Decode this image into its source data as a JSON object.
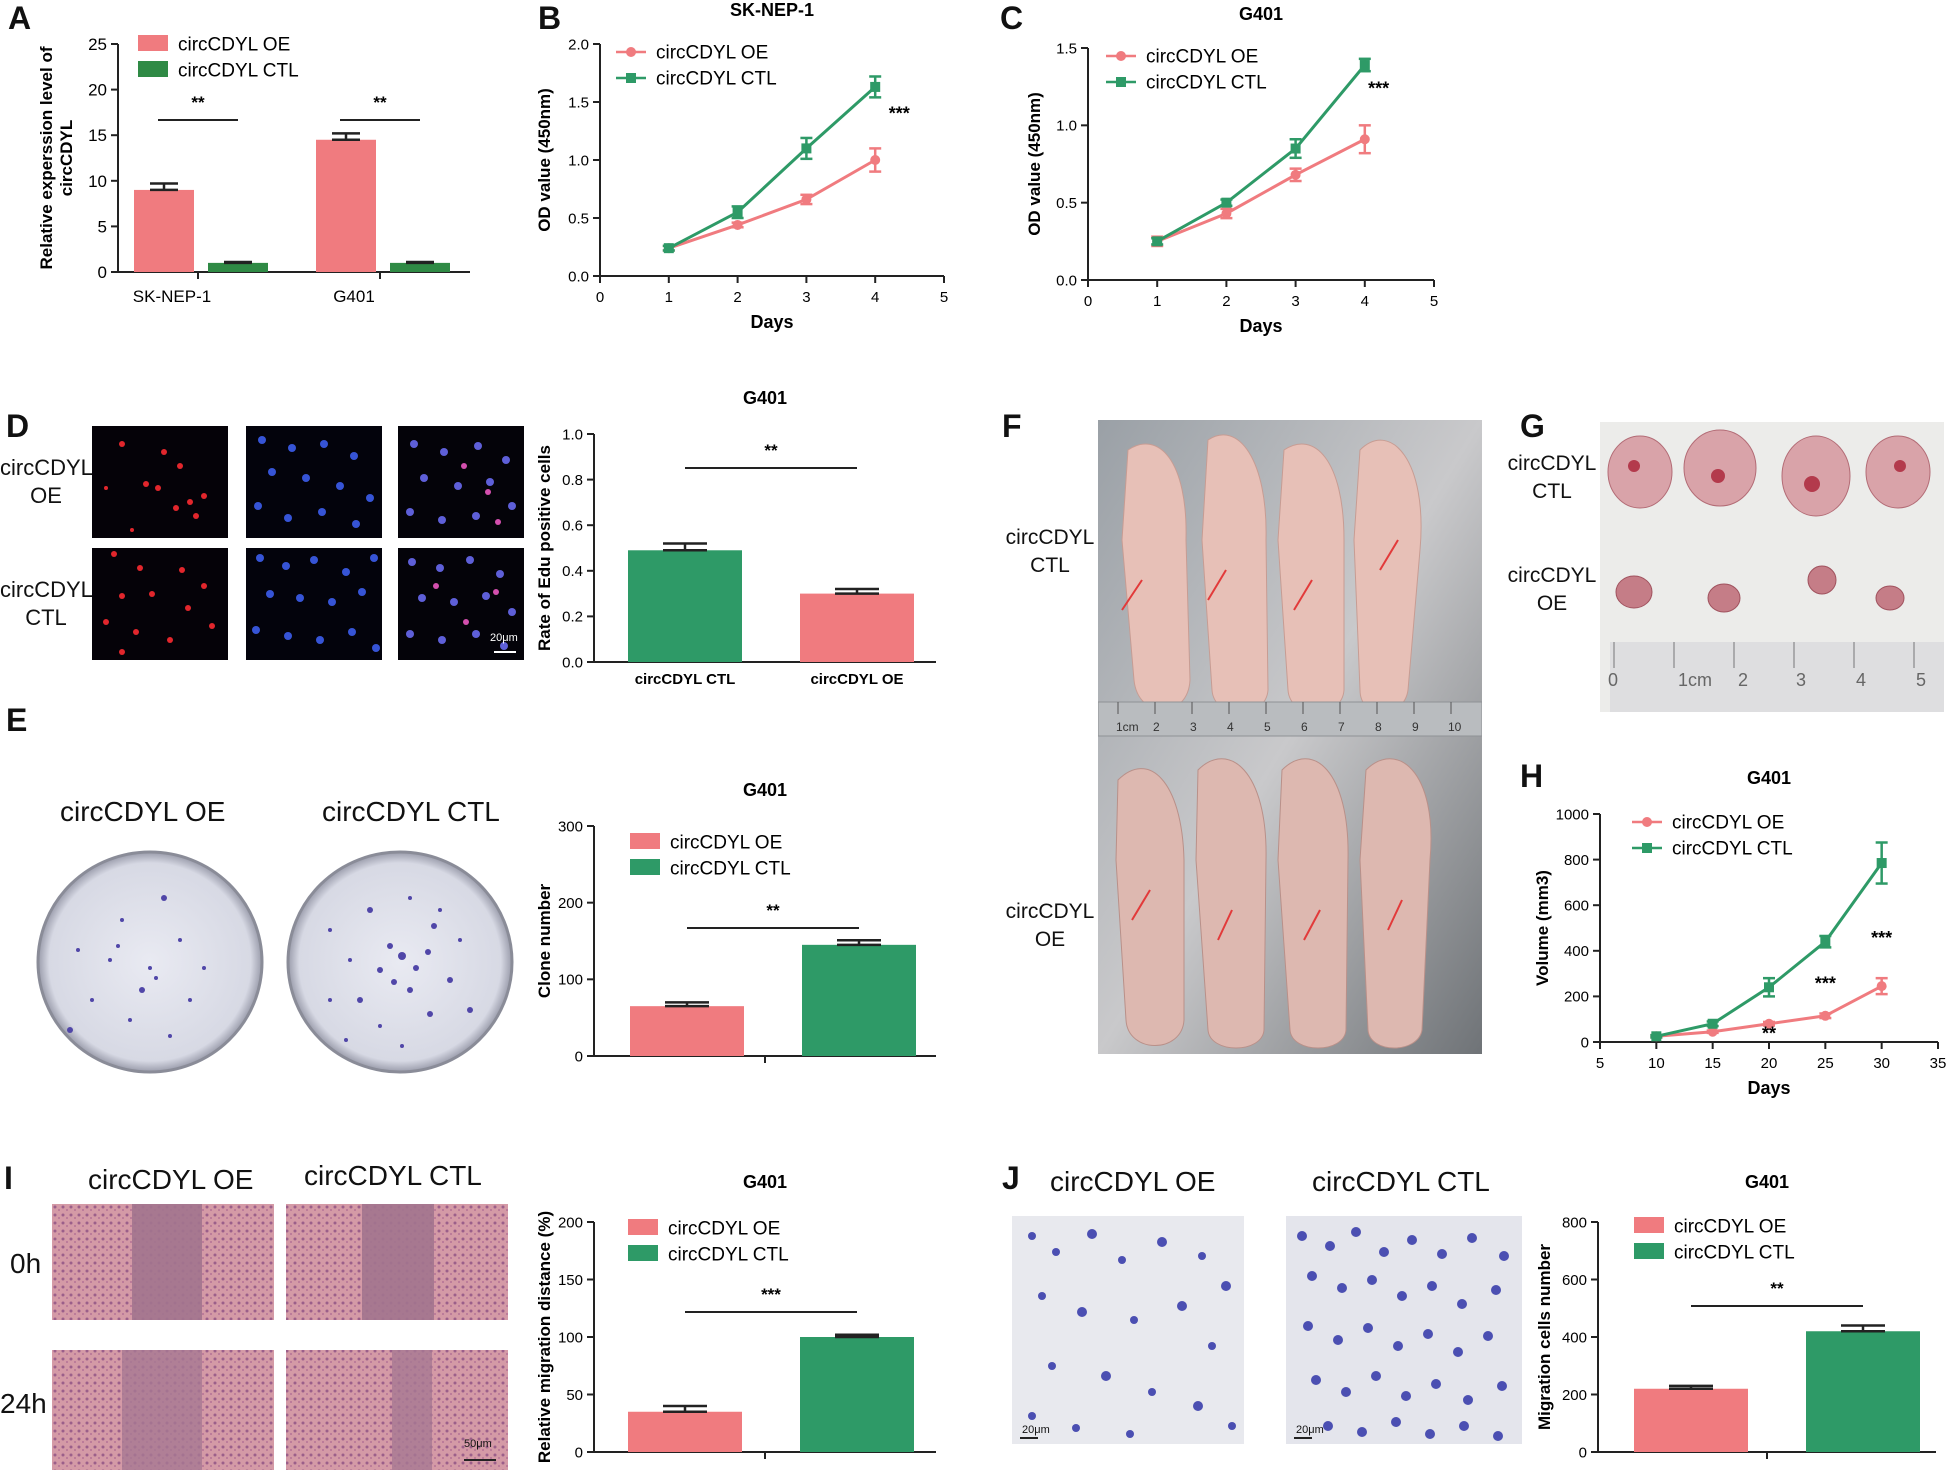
{
  "colors": {
    "oe": "#f07b7f",
    "ctl": "#2e9a67",
    "ctl_dark": "#2f8a45",
    "axis": "#222222"
  },
  "panels": {
    "A": "A",
    "B": "B",
    "C": "C",
    "D": "D",
    "E": "E",
    "F": "F",
    "G": "G",
    "H": "H",
    "I": "I",
    "J": "J"
  },
  "photo_labels": {
    "d_oe": [
      "circCDYL",
      "OE"
    ],
    "d_ctl": [
      "circCDYL",
      "CTL"
    ],
    "d_scale": "20μm",
    "e_oe": "circCDYL OE",
    "e_ctl": "circCDYL CTL",
    "f_ctl": [
      "circCDYL",
      "CTL"
    ],
    "f_oe": [
      "circCDYL",
      "OE"
    ],
    "f_ruler": [
      "1cm",
      "2",
      "3",
      "4",
      "5",
      "6",
      "7",
      "8",
      "9",
      "10"
    ],
    "g_ctl": [
      "circCDYL",
      "CTL"
    ],
    "g_oe": [
      "circCDYL",
      "OE"
    ],
    "g_ruler": [
      "0",
      "1cm",
      "2",
      "3",
      "4",
      "5"
    ],
    "i_oe": "circCDYL OE",
    "i_ctl": "circCDYL CTL",
    "i_0h": "0h",
    "i_24h": "24h",
    "i_scale": "50μm",
    "j_oe": "circCDYL OE",
    "j_ctl": "circCDYL CTL",
    "j_scale": "20μm"
  },
  "chart_data": [
    {
      "panel": "A",
      "type": "bar",
      "title": "",
      "categories": [
        "SK-NEP-1",
        "G401"
      ],
      "series": [
        {
          "name": "circCDYL OE",
          "values": [
            9.0,
            14.5
          ],
          "errors": [
            0.7,
            0.7
          ]
        },
        {
          "name": "circCDYL CTL",
          "values": [
            1.0,
            1.0
          ],
          "errors": [
            0.1,
            0.1
          ]
        }
      ],
      "ylabel": [
        "Relative experssion level of",
        "circCDYL"
      ],
      "ylim": [
        0,
        25
      ],
      "yticks": [
        0,
        5,
        10,
        15,
        20,
        25
      ],
      "significance": [
        "**",
        "**"
      ],
      "legend": "top-right"
    },
    {
      "panel": "B",
      "type": "line",
      "title": "SK-NEP-1",
      "x": [
        1,
        2,
        3,
        4
      ],
      "series": [
        {
          "name": "circCDYL OE",
          "values": [
            0.24,
            0.44,
            0.66,
            1.0
          ],
          "errors": [
            0.02,
            0.02,
            0.04,
            0.1
          ]
        },
        {
          "name": "circCDYL CTL",
          "values": [
            0.24,
            0.55,
            1.1,
            1.63
          ],
          "errors": [
            0.02,
            0.05,
            0.09,
            0.09
          ]
        }
      ],
      "xlabel": "Days",
      "ylabel": "OD value (450nm)",
      "xlim": [
        0,
        5
      ],
      "ylim": [
        0,
        2.0
      ],
      "xticks": [
        0,
        1,
        2,
        3,
        4,
        5
      ],
      "yticks": [
        "0.0",
        "0.5",
        "1.0",
        "1.5",
        "2.0"
      ],
      "significance": "***",
      "legend": "top-left"
    },
    {
      "panel": "C",
      "type": "line",
      "title": "G401",
      "x": [
        1,
        2,
        3,
        4
      ],
      "series": [
        {
          "name": "circCDYL OE",
          "values": [
            0.25,
            0.43,
            0.68,
            0.91
          ],
          "errors": [
            0.03,
            0.03,
            0.04,
            0.09
          ]
        },
        {
          "name": "circCDYL CTL",
          "values": [
            0.25,
            0.5,
            0.85,
            1.39
          ],
          "errors": [
            0.02,
            0.02,
            0.06,
            0.04
          ]
        }
      ],
      "xlabel": "Days",
      "ylabel": "OD value (450nm)",
      "xlim": [
        0,
        5
      ],
      "ylim": [
        0,
        1.5
      ],
      "xticks": [
        0,
        1,
        2,
        3,
        4,
        5
      ],
      "yticks": [
        "0.0",
        "0.5",
        "1.0",
        "1.5"
      ],
      "significance": "***",
      "legend": "top-left"
    },
    {
      "panel": "D",
      "type": "bar",
      "title": "G401",
      "categories": [
        "circCDYL CTL",
        "circCDYL OE"
      ],
      "values": [
        0.49,
        0.3
      ],
      "errors": [
        0.03,
        0.02
      ],
      "ylabel": "Rate of Edu positive cells",
      "ylim": [
        0,
        1.0
      ],
      "yticks": [
        "0.0",
        "0.2",
        "0.4",
        "0.6",
        "0.8",
        "1.0"
      ],
      "significance": "**"
    },
    {
      "panel": "E",
      "type": "bar",
      "title": "G401",
      "series": [
        {
          "name": "circCDYL OE",
          "values": [
            65
          ],
          "errors": [
            5
          ]
        },
        {
          "name": "circCDYL CTL",
          "values": [
            145
          ],
          "errors": [
            6
          ]
        }
      ],
      "ylabel": "Clone number",
      "ylim": [
        0,
        300
      ],
      "yticks": [
        0,
        100,
        200,
        300
      ],
      "significance": "**",
      "legend": "top-left"
    },
    {
      "panel": "H",
      "type": "line",
      "title": "G401",
      "x": [
        10,
        15,
        20,
        25,
        30
      ],
      "series": [
        {
          "name": "circCDYL OE",
          "values": [
            25,
            45,
            80,
            115,
            245
          ],
          "errors": [
            5,
            5,
            8,
            10,
            35
          ]
        },
        {
          "name": "circCDYL CTL",
          "values": [
            25,
            80,
            240,
            440,
            785
          ],
          "errors": [
            5,
            10,
            40,
            25,
            90
          ]
        }
      ],
      "xlabel": "Days",
      "ylabel": "Volume (mm3)",
      "xlim": [
        5,
        35
      ],
      "ylim": [
        0,
        1000
      ],
      "xticks": [
        5,
        10,
        15,
        20,
        25,
        30,
        35
      ],
      "yticks": [
        0,
        200,
        400,
        600,
        800,
        1000
      ],
      "significance": [
        "**",
        "***",
        "***"
      ],
      "legend": "top-left"
    },
    {
      "panel": "I",
      "type": "bar",
      "title": "G401",
      "series": [
        {
          "name": "circCDYL OE",
          "values": [
            35
          ],
          "errors": [
            5
          ]
        },
        {
          "name": "circCDYL CTL",
          "values": [
            100
          ],
          "errors": [
            2
          ]
        }
      ],
      "ylabel": "Relative migration distance (%)",
      "ylim": [
        0,
        200
      ],
      "yticks": [
        0,
        50,
        100,
        150,
        200
      ],
      "significance": "***",
      "legend": "top-left"
    },
    {
      "panel": "J",
      "type": "bar",
      "title": "G401",
      "series": [
        {
          "name": "circCDYL OE",
          "values": [
            220
          ],
          "errors": [
            10
          ]
        },
        {
          "name": "circCDYL CTL",
          "values": [
            420
          ],
          "errors": [
            20
          ]
        }
      ],
      "ylabel": "Migration cells number",
      "ylim": [
        0,
        800
      ],
      "yticks": [
        0,
        200,
        400,
        600,
        800
      ],
      "significance": "**",
      "legend": "top-left"
    }
  ]
}
